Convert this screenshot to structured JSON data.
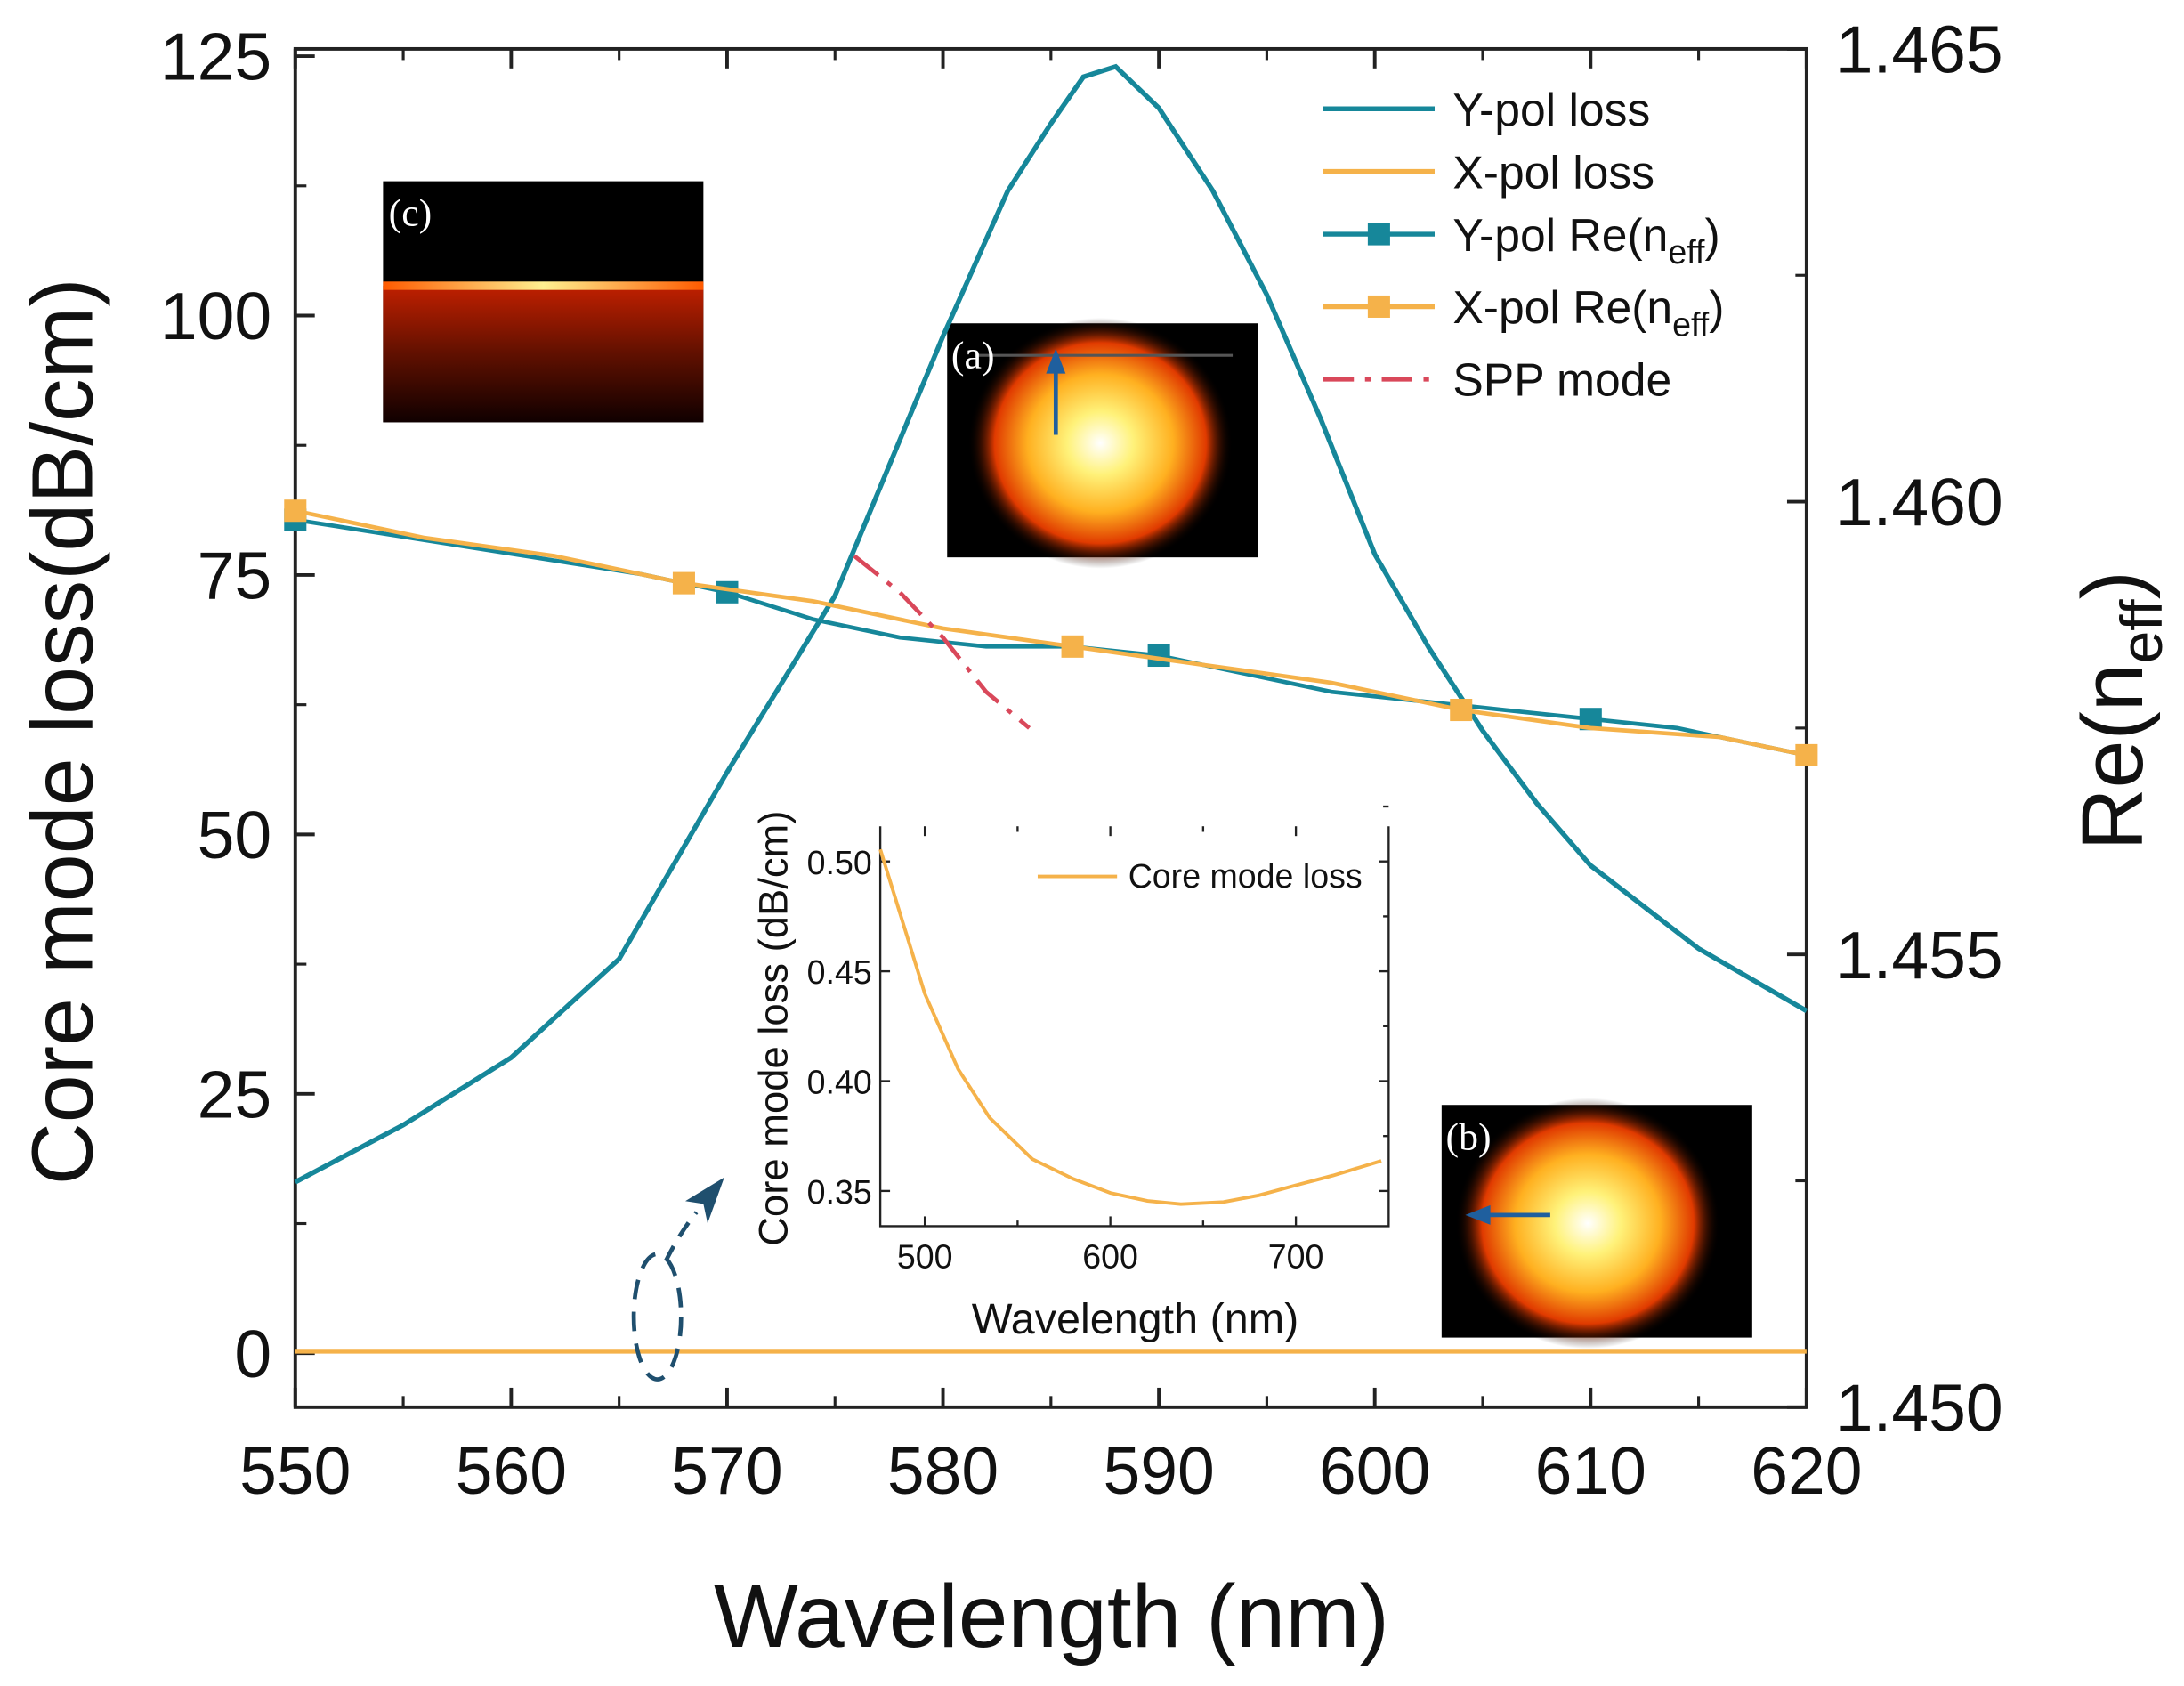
{
  "chart_data": {
    "type": "line",
    "title": "",
    "xlabel": "Wavelength (nm)",
    "ylabel": "Core mode loss(dB/cm)",
    "ylabel_right": {
      "base": "Re(n",
      "sub": "eff",
      "tail": ")"
    },
    "xlim": [
      550,
      620
    ],
    "ylim": [
      -5.2,
      125.7
    ],
    "ylim_right": [
      1.45,
      1.465
    ],
    "xticks": [
      "550",
      "560",
      "570",
      "580",
      "590",
      "600",
      "610",
      "620"
    ],
    "yticks": [
      "0",
      "25",
      "50",
      "75",
      "100",
      "125"
    ],
    "yticks_right": [
      "1.450",
      "1.455",
      "1.460",
      "1.465"
    ],
    "grid": false,
    "legend_position": "top-right",
    "series": [
      {
        "name": "Y-pol loss",
        "axis": "left",
        "color": "#16879a",
        "style": "solid",
        "marker": false,
        "x": [
          550,
          555,
          560,
          565,
          570,
          575,
          580,
          583,
          585,
          586.5,
          588,
          590,
          592.5,
          595,
          597.5,
          600,
          602.5,
          605,
          607.5,
          610,
          615,
          620
        ],
        "y": [
          16.5,
          22,
          28.5,
          38,
          56,
          73,
          98,
          112,
          118.5,
          123,
          124,
          120,
          112,
          102,
          90,
          77,
          68,
          60,
          53,
          47,
          39,
          33
        ]
      },
      {
        "name": "X-pol loss",
        "axis": "left",
        "color": "#f5b24a",
        "style": "solid",
        "marker": false,
        "x": [
          550,
          620
        ],
        "y": [
          0.2,
          0.2
        ]
      },
      {
        "legend": {
          "base": "Y-pol Re(n",
          "sub": "eff",
          "tail": ")"
        },
        "name": "Y-pol Re(neff)",
        "axis": "right",
        "color": "#16879a",
        "style": "solid",
        "marker": "square",
        "x": [
          550,
          558,
          566,
          570,
          574,
          578,
          582,
          586,
          590,
          594,
          598,
          602,
          606,
          610,
          614,
          620
        ],
        "y": [
          1.4598,
          1.4595,
          1.4592,
          1.459,
          1.4587,
          1.4585,
          1.4584,
          1.4584,
          1.4583,
          1.4581,
          1.4579,
          1.4578,
          1.4577,
          1.4576,
          1.4575,
          1.4572
        ],
        "marker_x": [
          550,
          570,
          590,
          610
        ]
      },
      {
        "legend": {
          "base": "X-pol Re(n",
          "sub": "eff",
          "tail": ")"
        },
        "name": "X-pol Re(neff)",
        "axis": "right",
        "color": "#f5b24a",
        "style": "solid",
        "marker": "square",
        "x": [
          550,
          556,
          562,
          568,
          574,
          580,
          586,
          592,
          598,
          604,
          610,
          616,
          620
        ],
        "y": [
          1.4599,
          1.4596,
          1.4594,
          1.4591,
          1.4589,
          1.4586,
          1.4584,
          1.4582,
          1.458,
          1.4577,
          1.4575,
          1.4574,
          1.4572
        ],
        "marker_x": [
          550,
          568,
          586,
          604,
          620
        ]
      },
      {
        "name": "SPP mode",
        "axis": "right",
        "color": "#d9485a",
        "style": "dashdot",
        "marker": false,
        "x": [
          575.9,
          578,
          580,
          582,
          584
        ],
        "y": [
          1.4594,
          1.459,
          1.4585,
          1.4579,
          1.4575
        ]
      }
    ],
    "panels": [
      "(c)",
      "(a)",
      "(b)"
    ],
    "inset": {
      "type": "line",
      "xlabel": "Wavelength (nm)",
      "ylabel": "Core mode loss (dB/cm)",
      "xlim": [
        476,
        750
      ],
      "ylim": [
        0.334,
        0.516
      ],
      "xticks": [
        "500",
        "600",
        "700"
      ],
      "yticks": [
        "0.35",
        "0.40",
        "0.45",
        "0.50"
      ],
      "legend": "Core mode loss",
      "color": "#f5b24a",
      "x": [
        476,
        500,
        518,
        535,
        558,
        580,
        600,
        620,
        638,
        661,
        680,
        700,
        720,
        746
      ],
      "y": [
        0.5055,
        0.4397,
        0.4055,
        0.3833,
        0.3645,
        0.3555,
        0.3491,
        0.3455,
        0.344,
        0.345,
        0.348,
        0.3526,
        0.357,
        0.3637
      ]
    }
  }
}
